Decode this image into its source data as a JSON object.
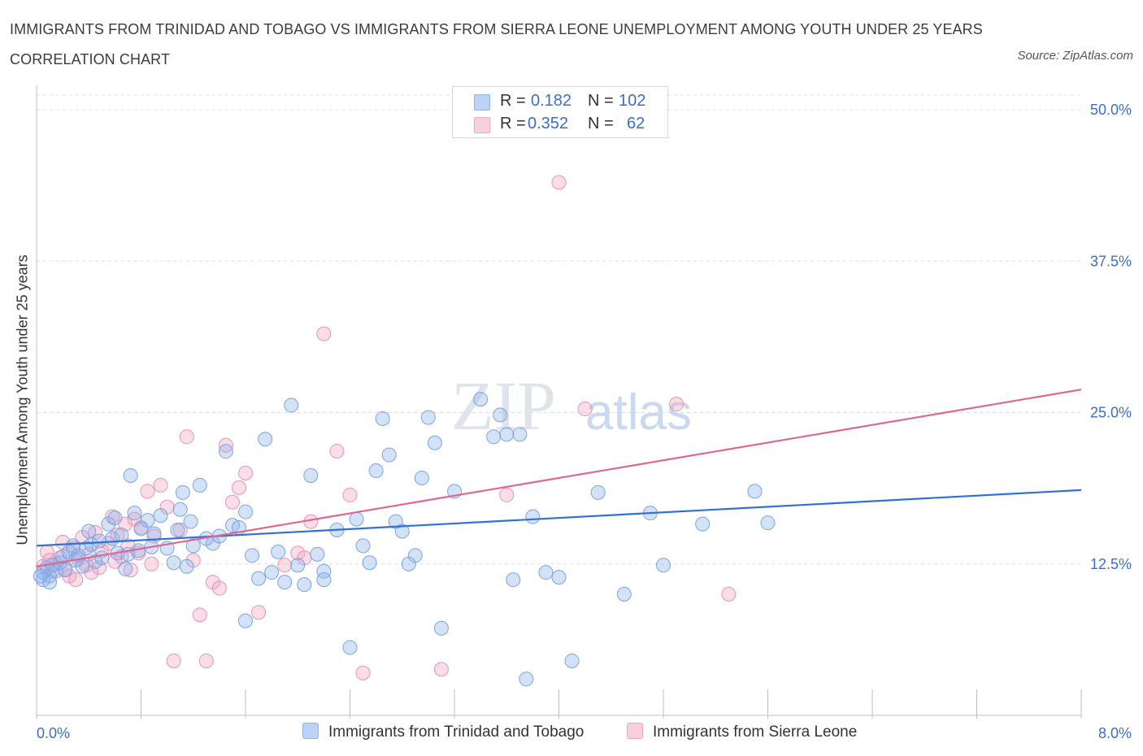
{
  "title": "IMMIGRANTS FROM TRINIDAD AND TOBAGO VS IMMIGRANTS FROM SIERRA LEONE UNEMPLOYMENT AMONG YOUTH UNDER 25 YEARS CORRELATION CHART",
  "source": "Source: ZipAtlas.com",
  "watermark": {
    "zip": "ZIP",
    "atlas": "atlas"
  },
  "legend_stats": {
    "series1": {
      "r_label": "R =",
      "r_value": "0.182",
      "n_label": "N =",
      "n_value": "102"
    },
    "series2": {
      "r_label": "R =",
      "r_value": "0.352",
      "n_label": "N =",
      "n_value": "62"
    }
  },
  "colors": {
    "blue": "#8fb4ea",
    "blue_line": "#2f72d4",
    "pink": "#f2a7c0",
    "pink_line": "#e06690",
    "axis_text": "#3a6fc9"
  },
  "chart_data": {
    "type": "scatter",
    "title": "IMMIGRANTS FROM TRINIDAD AND TOBAGO VS IMMIGRANTS FROM SIERRA LEONE UNEMPLOYMENT AMONG YOUTH UNDER 25 YEARS CORRELATION CHART",
    "xlabel": "",
    "ylabel": "Unemployment Among Youth under 25 years",
    "xlim": [
      0,
      8
    ],
    "ylim": [
      0,
      50
    ],
    "x_tick_labels": [
      "0.0%",
      "8.0%"
    ],
    "y_tick_labels": [
      "12.5%",
      "25.0%",
      "37.5%",
      "50.0%"
    ],
    "y_tick_values": [
      12.5,
      25,
      37.5,
      50
    ],
    "grid": true,
    "legend_position": "bottom",
    "series": [
      {
        "name": "Immigrants from Trinidad and Tobago",
        "color": "#8fb4ea",
        "trend": {
          "x": [
            0,
            8
          ],
          "y": [
            14.0,
            18.6
          ]
        },
        "points": [
          [
            0.05,
            11.8
          ],
          [
            0.08,
            12.2
          ],
          [
            0.1,
            11.5
          ],
          [
            0.12,
            12.4
          ],
          [
            0.15,
            11.9
          ],
          [
            0.18,
            12.6
          ],
          [
            0.2,
            13.1
          ],
          [
            0.22,
            12.0
          ],
          [
            0.25,
            13.5
          ],
          [
            0.28,
            14.0
          ],
          [
            0.3,
            12.8
          ],
          [
            0.32,
            13.2
          ],
          [
            0.35,
            12.3
          ],
          [
            0.38,
            13.8
          ],
          [
            0.4,
            15.2
          ],
          [
            0.42,
            14.1
          ],
          [
            0.45,
            12.7
          ],
          [
            0.48,
            14.4
          ],
          [
            0.5,
            13.0
          ],
          [
            0.55,
            15.8
          ],
          [
            0.58,
            14.6
          ],
          [
            0.6,
            16.3
          ],
          [
            0.62,
            13.4
          ],
          [
            0.65,
            14.9
          ],
          [
            0.68,
            12.1
          ],
          [
            0.7,
            13.3
          ],
          [
            0.72,
            19.8
          ],
          [
            0.75,
            16.7
          ],
          [
            0.78,
            13.6
          ],
          [
            0.8,
            15.4
          ],
          [
            0.85,
            16.1
          ],
          [
            0.88,
            13.9
          ],
          [
            0.9,
            15.0
          ],
          [
            0.95,
            16.5
          ],
          [
            1.0,
            13.8
          ],
          [
            1.05,
            12.6
          ],
          [
            1.08,
            15.3
          ],
          [
            1.1,
            17.0
          ],
          [
            1.12,
            18.4
          ],
          [
            1.15,
            12.3
          ],
          [
            1.18,
            16.0
          ],
          [
            1.2,
            14.0
          ],
          [
            1.25,
            19.0
          ],
          [
            1.3,
            14.6
          ],
          [
            1.35,
            14.2
          ],
          [
            1.4,
            14.8
          ],
          [
            1.45,
            21.8
          ],
          [
            1.5,
            15.7
          ],
          [
            1.55,
            15.5
          ],
          [
            1.6,
            16.8
          ],
          [
            1.65,
            13.2
          ],
          [
            1.7,
            11.3
          ],
          [
            1.75,
            22.8
          ],
          [
            1.8,
            11.8
          ],
          [
            1.85,
            13.5
          ],
          [
            1.9,
            11.0
          ],
          [
            1.95,
            25.6
          ],
          [
            2.0,
            12.4
          ],
          [
            2.05,
            10.8
          ],
          [
            2.1,
            19.8
          ],
          [
            2.15,
            13.3
          ],
          [
            2.2,
            11.9
          ],
          [
            2.3,
            15.3
          ],
          [
            2.4,
            5.6
          ],
          [
            2.45,
            16.2
          ],
          [
            2.5,
            14.0
          ],
          [
            2.55,
            12.6
          ],
          [
            2.6,
            20.2
          ],
          [
            2.65,
            24.5
          ],
          [
            2.7,
            21.5
          ],
          [
            2.75,
            16.0
          ],
          [
            2.8,
            15.2
          ],
          [
            2.85,
            12.5
          ],
          [
            2.9,
            13.2
          ],
          [
            2.95,
            19.6
          ],
          [
            3.0,
            24.6
          ],
          [
            3.05,
            22.5
          ],
          [
            3.1,
            7.2
          ],
          [
            3.2,
            18.5
          ],
          [
            3.4,
            26.1
          ],
          [
            3.5,
            23.0
          ],
          [
            3.55,
            24.8
          ],
          [
            3.6,
            23.2
          ],
          [
            3.65,
            11.2
          ],
          [
            3.7,
            23.2
          ],
          [
            3.75,
            3.0
          ],
          [
            3.8,
            16.4
          ],
          [
            3.9,
            11.8
          ],
          [
            4.0,
            11.4
          ],
          [
            4.1,
            4.5
          ],
          [
            4.3,
            18.4
          ],
          [
            4.5,
            10.0
          ],
          [
            4.7,
            16.7
          ],
          [
            4.8,
            12.4
          ],
          [
            5.1,
            15.8
          ],
          [
            5.5,
            18.5
          ],
          [
            5.6,
            15.9
          ],
          [
            0.05,
            11.2
          ],
          [
            0.1,
            11.0
          ],
          [
            0.03,
            11.5
          ],
          [
            2.2,
            11.2
          ],
          [
            1.6,
            7.8
          ]
        ]
      },
      {
        "name": "Immigrants from Sierra Leone",
        "color": "#f2a7c0",
        "trend": {
          "x": [
            0,
            8
          ],
          "y": [
            12.3,
            26.9
          ]
        },
        "points": [
          [
            0.05,
            12.3
          ],
          [
            0.08,
            13.5
          ],
          [
            0.1,
            12.8
          ],
          [
            0.12,
            11.9
          ],
          [
            0.15,
            12.5
          ],
          [
            0.18,
            13.0
          ],
          [
            0.2,
            14.3
          ],
          [
            0.22,
            12.1
          ],
          [
            0.25,
            11.5
          ],
          [
            0.28,
            13.8
          ],
          [
            0.3,
            11.2
          ],
          [
            0.32,
            12.9
          ],
          [
            0.35,
            14.7
          ],
          [
            0.38,
            12.4
          ],
          [
            0.4,
            13.3
          ],
          [
            0.42,
            11.8
          ],
          [
            0.45,
            15.1
          ],
          [
            0.48,
            12.2
          ],
          [
            0.5,
            13.6
          ],
          [
            0.55,
            14.2
          ],
          [
            0.58,
            16.4
          ],
          [
            0.6,
            12.7
          ],
          [
            0.62,
            14.9
          ],
          [
            0.65,
            13.1
          ],
          [
            0.68,
            15.8
          ],
          [
            0.7,
            14.0
          ],
          [
            0.72,
            12.0
          ],
          [
            0.75,
            16.2
          ],
          [
            0.78,
            13.4
          ],
          [
            0.8,
            15.5
          ],
          [
            0.85,
            18.5
          ],
          [
            0.88,
            12.5
          ],
          [
            0.9,
            14.8
          ],
          [
            0.95,
            19.0
          ],
          [
            1.0,
            17.2
          ],
          [
            1.05,
            4.5
          ],
          [
            1.1,
            15.3
          ],
          [
            1.15,
            23.0
          ],
          [
            1.2,
            12.8
          ],
          [
            1.25,
            8.3
          ],
          [
            1.3,
            4.5
          ],
          [
            1.35,
            11.0
          ],
          [
            1.4,
            10.5
          ],
          [
            1.45,
            22.3
          ],
          [
            1.5,
            17.6
          ],
          [
            1.55,
            18.8
          ],
          [
            1.6,
            20.0
          ],
          [
            1.7,
            8.5
          ],
          [
            1.9,
            12.4
          ],
          [
            2.0,
            13.4
          ],
          [
            2.05,
            13.0
          ],
          [
            2.1,
            16.0
          ],
          [
            2.2,
            31.5
          ],
          [
            2.3,
            21.8
          ],
          [
            2.4,
            18.2
          ],
          [
            2.5,
            3.5
          ],
          [
            3.1,
            3.8
          ],
          [
            3.6,
            18.2
          ],
          [
            4.0,
            44.0
          ],
          [
            4.2,
            25.3
          ],
          [
            4.9,
            25.7
          ],
          [
            5.3,
            10.0
          ]
        ]
      }
    ]
  },
  "bottom_legend": [
    {
      "label": "Immigrants from Trinidad and Tobago",
      "color": "#8fb4ea"
    },
    {
      "label": "Immigrants from Sierra Leone",
      "color": "#f2a7c0"
    }
  ]
}
